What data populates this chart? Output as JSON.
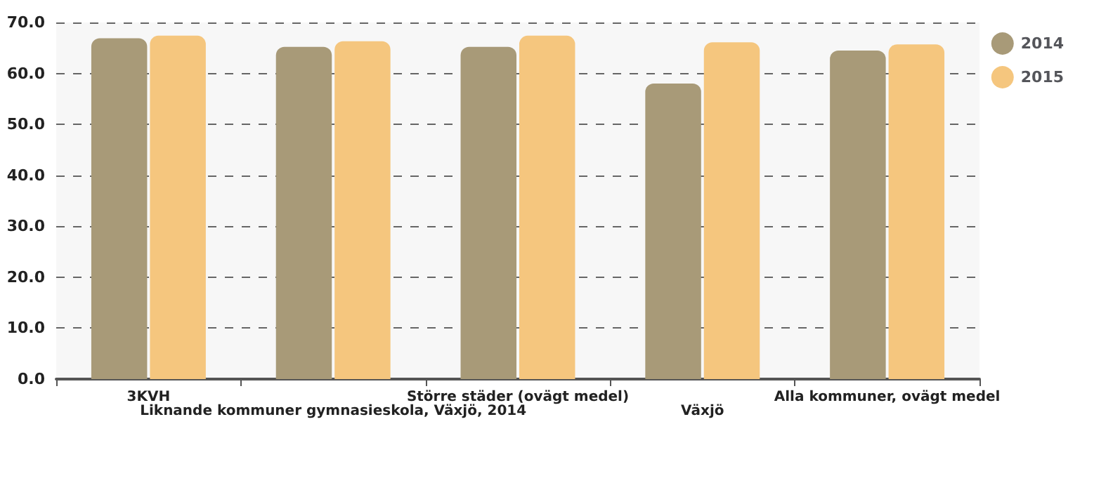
{
  "chart_data": {
    "type": "bar",
    "categories": [
      "3KVH",
      "Liknande kommuner gymnasieskola, Växjö, 2014",
      "Större städer (ovägt medel)",
      "Växjö",
      "Alla kommuner, ovägt medel"
    ],
    "series": [
      {
        "name": "2014",
        "color": "#a89a78",
        "values": [
          66.9,
          65.2,
          65.2,
          58.0,
          64.5
        ]
      },
      {
        "name": "2015",
        "color": "#f5c67e",
        "values": [
          67.4,
          66.3,
          67.4,
          66.1,
          65.7
        ]
      }
    ],
    "ylim": [
      0,
      70
    ],
    "yticks": [
      {
        "value": 0,
        "label": "0.0"
      },
      {
        "value": 10,
        "label": "10.0"
      },
      {
        "value": 20,
        "label": "20.0"
      },
      {
        "value": 30,
        "label": "30.0"
      },
      {
        "value": 40,
        "label": "40.0"
      },
      {
        "value": 50,
        "label": "50.0"
      },
      {
        "value": 60,
        "label": "60.0"
      },
      {
        "value": 70,
        "label": "70.0"
      }
    ],
    "grid": "y",
    "legend": "top right"
  }
}
